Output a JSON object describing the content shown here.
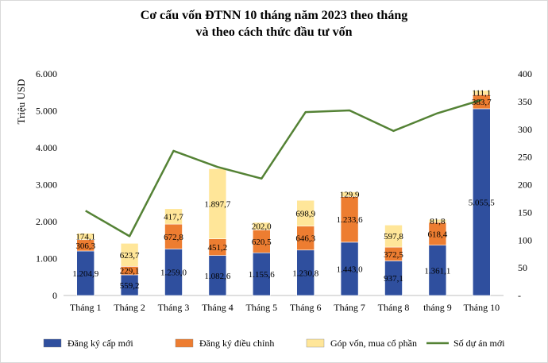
{
  "chart_data": {
    "type": "bar",
    "stacked": true,
    "title_line1": "Cơ cấu vốn ĐTNN 10 tháng năm 2023 theo tháng",
    "title_line2": "và theo cách thức đầu tư vốn",
    "ylabel": "Triệu USD",
    "categories": [
      "Tháng 1",
      "Tháng 2",
      "Tháng 3",
      "Tháng 4",
      "Tháng 5",
      "Tháng 6",
      "Tháng 7",
      "Tháng 8",
      "tháng 9",
      "Tháng 10"
    ],
    "series": [
      {
        "name": "Đăng ký cấp mới",
        "color": "#2f4f9e",
        "values": [
          1204.9,
          559.2,
          1259.0,
          1082.6,
          1155.6,
          1230.8,
          1443.0,
          937.1,
          1361.1,
          5055.5
        ],
        "labels": [
          "1.204,9",
          "559,2",
          "1.259,0",
          "1.082,6",
          "1.155,6",
          "1.230,8",
          "1.443,0",
          "937,1",
          "1.361,1",
          "5.055,5"
        ]
      },
      {
        "name": "Đăng ký điều chỉnh",
        "color": "#ed7d31",
        "values": [
          306.3,
          229.1,
          672.8,
          451.2,
          620.5,
          646.3,
          1233.6,
          372.5,
          618.4,
          383.7
        ],
        "labels": [
          "306,3",
          "229,1",
          "672,8",
          "451,2",
          "620,5",
          "646,3",
          "1.233,6",
          "372,5",
          "618,4",
          "383,7"
        ]
      },
      {
        "name": "Góp vốn, mua cổ phần",
        "color": "#ffe699",
        "values": [
          174.1,
          623.7,
          417.7,
          1897.7,
          202.0,
          698.9,
          129.9,
          597.8,
          81.8,
          111.1
        ],
        "labels": [
          "174,1",
          "623,7",
          "417,7",
          "1.897,7",
          "202,0",
          "698,9",
          "129,9",
          "597,8",
          "81,8",
          "111,1"
        ]
      }
    ],
    "line_series": {
      "name": "Số dự án mới",
      "color": "#548235",
      "axis": "right",
      "values": [
        153,
        107,
        261,
        232,
        211,
        331,
        334,
        297,
        329,
        353
      ]
    },
    "y_left": {
      "min": 0,
      "max": 6000,
      "ticks": [
        0,
        1000,
        2000,
        3000,
        4000,
        5000,
        6000
      ],
      "tick_labels": [
        "0",
        "1.000",
        "2.000",
        "3.000",
        "4.000",
        "5.000",
        "6.000"
      ]
    },
    "y_right": {
      "min": 0,
      "max": 400,
      "ticks": [
        0,
        50,
        100,
        150,
        200,
        250,
        300,
        350,
        400
      ],
      "tick_labels": [
        "-",
        "50",
        "100",
        "150",
        "200",
        "250",
        "300",
        "350",
        "400"
      ]
    },
    "legend_position": "bottom",
    "grid": false
  }
}
